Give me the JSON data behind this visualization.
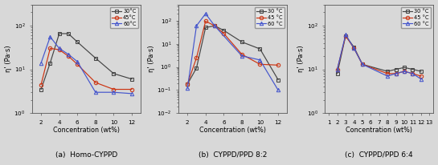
{
  "panel_a": {
    "caption": "(a)  Homo-CYPPD",
    "xlabel": "Concentration (wt%)",
    "ylabel": "η' (Pa·s)",
    "xticks": [
      2,
      4,
      6,
      8,
      10,
      12
    ],
    "xlim": [
      1,
      13
    ],
    "ylim": [
      1.0,
      300.0
    ],
    "series": [
      {
        "label": "30°C",
        "color": "#444444",
        "marker": "s",
        "x": [
          2,
          3,
          4,
          5,
          6,
          8,
          10,
          12
        ],
        "y": [
          3.5,
          14,
          65,
          65,
          42,
          18,
          8,
          6
        ]
      },
      {
        "label": "45°C",
        "color": "#cc3311",
        "marker": "o",
        "x": [
          2,
          3,
          4,
          5,
          6,
          8,
          10,
          12
        ],
        "y": [
          4.5,
          30,
          28,
          20,
          13,
          5,
          3.5,
          3.5
        ]
      },
      {
        "label": "60°C",
        "color": "#4455cc",
        "marker": "^",
        "x": [
          2,
          3,
          4,
          5,
          6,
          8,
          10,
          12
        ],
        "y": [
          14,
          55,
          30,
          22,
          15,
          3.0,
          3.0,
          2.8
        ]
      }
    ]
  },
  "panel_b": {
    "caption": "(b)  CYPPD/PPD 8:2",
    "xlabel": "Concentration (wt%)",
    "ylabel": "η' (Pa·s)",
    "xticks": [
      2,
      4,
      6,
      8,
      10,
      12
    ],
    "xlim": [
      1,
      13
    ],
    "ylim": [
      0.01,
      500.0
    ],
    "series": [
      {
        "label": "30 °C",
        "color": "#444444",
        "marker": "s",
        "x": [
          2,
          3,
          4,
          5,
          6,
          8,
          10,
          12
        ],
        "y": [
          0.18,
          0.9,
          50,
          60,
          38,
          12,
          6,
          0.28
        ]
      },
      {
        "label": "45 °C",
        "color": "#cc3311",
        "marker": "o",
        "x": [
          2,
          3,
          4,
          5,
          6,
          8,
          10,
          12
        ],
        "y": [
          0.18,
          2.5,
          95,
          60,
          28,
          3.5,
          1.3,
          1.2
        ]
      },
      {
        "label": "60 °C",
        "color": "#4455cc",
        "marker": "^",
        "x": [
          2,
          3,
          4,
          5,
          8,
          10,
          12
        ],
        "y": [
          0.12,
          60,
          200,
          60,
          3.0,
          2.0,
          0.1
        ]
      }
    ]
  },
  "panel_c": {
    "caption": "(c)  CYPPD/PPD 6:4",
    "xlabel": "Concentration (wt%)",
    "ylabel": "η' (Pa·s)",
    "xticks": [
      1,
      2,
      3,
      4,
      5,
      6,
      7,
      8,
      9,
      10,
      11,
      12,
      13
    ],
    "xlim": [
      0.5,
      13.5
    ],
    "ylim": [
      1.0,
      300.0
    ],
    "series": [
      {
        "label": "30 °C",
        "color": "#444444",
        "marker": "s",
        "x": [
          2,
          3,
          4,
          5,
          8,
          9,
          10,
          11,
          12
        ],
        "y": [
          8,
          58,
          32,
          13,
          9,
          10,
          11,
          10,
          9
        ]
      },
      {
        "label": "45 °C",
        "color": "#cc3311",
        "marker": "o",
        "x": [
          2,
          3,
          4,
          5,
          8,
          9,
          10,
          11,
          12
        ],
        "y": [
          10,
          58,
          30,
          13,
          8,
          8,
          9,
          8,
          7
        ]
      },
      {
        "label": "60 °C",
        "color": "#4455cc",
        "marker": "^",
        "x": [
          2,
          3,
          4,
          5,
          8,
          9,
          10,
          11,
          12
        ],
        "y": [
          10,
          62,
          30,
          13,
          7,
          8,
          9,
          8,
          6
        ]
      }
    ]
  },
  "bg_color": "#d8d8d8",
  "figsize": [
    5.45,
    2.06
  ],
  "dpi": 100
}
